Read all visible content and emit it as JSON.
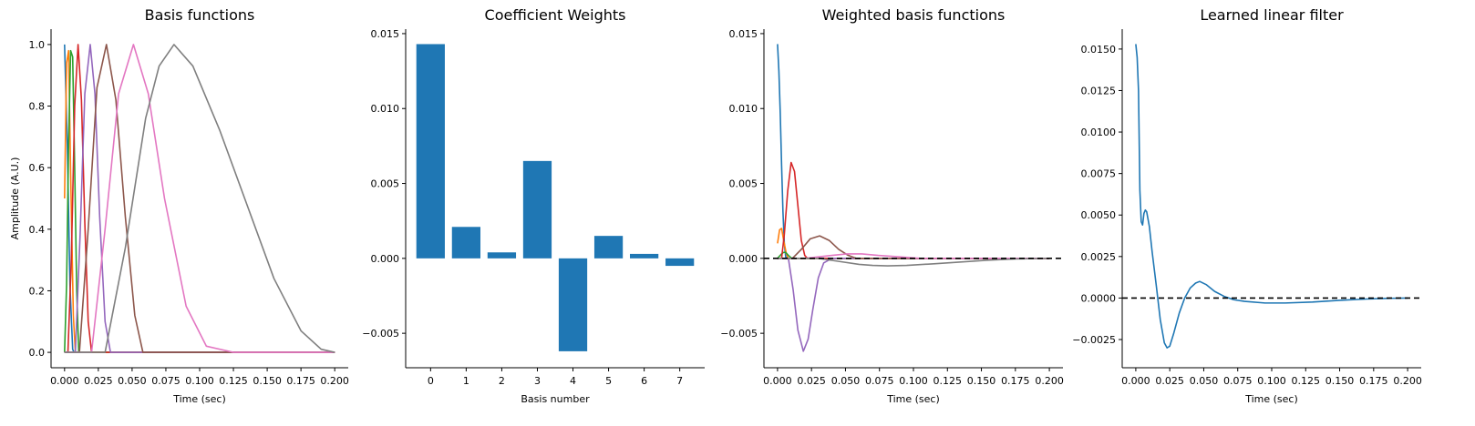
{
  "chart_data": [
    {
      "type": "line",
      "title": "Basis functions",
      "xlabel": "Time (sec)",
      "ylabel": "Amplitude (A.U.)",
      "xlim": [
        -0.01,
        0.21
      ],
      "ylim": [
        -0.05,
        1.05
      ],
      "xticks": [
        0.0,
        0.025,
        0.05,
        0.075,
        0.1,
        0.125,
        0.15,
        0.175,
        0.2
      ],
      "xtick_labels": [
        "0.000",
        "0.025",
        "0.050",
        "0.075",
        "0.100",
        "0.125",
        "0.150",
        "0.175",
        "0.200"
      ],
      "yticks": [
        0.0,
        0.2,
        0.4,
        0.6,
        0.8,
        1.0
      ],
      "ytick_labels": [
        "0.0",
        "0.2",
        "0.4",
        "0.6",
        "0.8",
        "1.0"
      ],
      "zero_line": false,
      "series": [
        {
          "color": "#1f77b4",
          "points": [
            [
              0.0,
              1.0
            ],
            [
              0.002,
              0.68
            ],
            [
              0.004,
              0.22
            ],
            [
              0.006,
              0.01
            ],
            [
              0.007,
              0.0
            ],
            [
              0.2,
              0.0
            ]
          ]
        },
        {
          "color": "#ff7f0e",
          "points": [
            [
              0.0,
              0.5
            ],
            [
              0.0015,
              0.94
            ],
            [
              0.003,
              0.98
            ],
            [
              0.0045,
              0.58
            ],
            [
              0.0065,
              0.12
            ],
            [
              0.008,
              0.0
            ],
            [
              0.2,
              0.0
            ]
          ]
        },
        {
          "color": "#2ca02c",
          "points": [
            [
              0.0,
              0.0
            ],
            [
              0.0015,
              0.22
            ],
            [
              0.003,
              0.68
            ],
            [
              0.0045,
              0.98
            ],
            [
              0.006,
              0.96
            ],
            [
              0.0075,
              0.6
            ],
            [
              0.009,
              0.2
            ],
            [
              0.0105,
              0.0
            ],
            [
              0.2,
              0.0
            ]
          ]
        },
        {
          "color": "#d62728",
          "points": [
            [
              0.0,
              0.0
            ],
            [
              0.0025,
              0.0
            ],
            [
              0.005,
              0.3
            ],
            [
              0.0075,
              0.8
            ],
            [
              0.01,
              1.0
            ],
            [
              0.0125,
              0.82
            ],
            [
              0.015,
              0.42
            ],
            [
              0.0175,
              0.1
            ],
            [
              0.02,
              0.0
            ],
            [
              0.2,
              0.0
            ]
          ]
        },
        {
          "color": "#9467bd",
          "points": [
            [
              0.0,
              0.0
            ],
            [
              0.008,
              0.0
            ],
            [
              0.0115,
              0.38
            ],
            [
              0.015,
              0.84
            ],
            [
              0.019,
              1.0
            ],
            [
              0.0225,
              0.84
            ],
            [
              0.026,
              0.44
            ],
            [
              0.03,
              0.1
            ],
            [
              0.034,
              0.0
            ],
            [
              0.2,
              0.0
            ]
          ]
        },
        {
          "color": "#8c564b",
          "points": [
            [
              0.0,
              0.0
            ],
            [
              0.011,
              0.0
            ],
            [
              0.0175,
              0.4
            ],
            [
              0.024,
              0.86
            ],
            [
              0.031,
              1.0
            ],
            [
              0.038,
              0.82
            ],
            [
              0.045,
              0.44
            ],
            [
              0.052,
              0.12
            ],
            [
              0.058,
              0.0
            ],
            [
              0.2,
              0.0
            ]
          ]
        },
        {
          "color": "#e377c2",
          "points": [
            [
              0.0,
              0.0
            ],
            [
              0.02,
              0.0
            ],
            [
              0.03,
              0.4
            ],
            [
              0.04,
              0.84
            ],
            [
              0.051,
              1.0
            ],
            [
              0.062,
              0.84
            ],
            [
              0.074,
              0.5
            ],
            [
              0.09,
              0.15
            ],
            [
              0.105,
              0.02
            ],
            [
              0.125,
              0.0
            ],
            [
              0.2,
              0.0
            ]
          ]
        },
        {
          "color": "#7f7f7f",
          "points": [
            [
              0.0,
              0.0
            ],
            [
              0.03,
              0.0
            ],
            [
              0.045,
              0.34
            ],
            [
              0.06,
              0.76
            ],
            [
              0.07,
              0.93
            ],
            [
              0.081,
              1.0
            ],
            [
              0.095,
              0.93
            ],
            [
              0.115,
              0.72
            ],
            [
              0.135,
              0.48
            ],
            [
              0.155,
              0.24
            ],
            [
              0.175,
              0.07
            ],
            [
              0.19,
              0.01
            ],
            [
              0.2,
              0.0
            ]
          ]
        }
      ]
    },
    {
      "type": "bar",
      "title": "Coefficient Weights",
      "xlabel": "Basis number",
      "ylabel": "",
      "categories": [
        "0",
        "1",
        "2",
        "3",
        "4",
        "5",
        "6",
        "7"
      ],
      "values": [
        0.0143,
        0.0021,
        0.0004,
        0.0065,
        -0.0062,
        0.0015,
        0.0003,
        -0.0005
      ],
      "color": "#1f77b4",
      "ylim": [
        -0.0073,
        0.0153
      ],
      "yticks": [
        -0.005,
        0.0,
        0.005,
        0.01,
        0.015
      ],
      "ytick_labels": [
        "−0.005",
        "0.000",
        "0.005",
        "0.010",
        "0.015"
      ]
    },
    {
      "type": "line",
      "title": "Weighted basis functions",
      "xlabel": "Time (sec)",
      "ylabel": "",
      "xlim": [
        -0.01,
        0.21
      ],
      "ylim": [
        -0.0073,
        0.0153
      ],
      "xticks": [
        0.0,
        0.025,
        0.05,
        0.075,
        0.1,
        0.125,
        0.15,
        0.175,
        0.2
      ],
      "xtick_labels": [
        "0.000",
        "0.025",
        "0.050",
        "0.075",
        "0.100",
        "0.125",
        "0.150",
        "0.175",
        "0.200"
      ],
      "yticks": [
        -0.005,
        0.0,
        0.005,
        0.01,
        0.015
      ],
      "ytick_labels": [
        "−0.005",
        "0.000",
        "0.005",
        "0.010",
        "0.015"
      ],
      "zero_line": true,
      "series": [
        {
          "color": "#1f77b4",
          "points": [
            [
              0.0,
              0.0143
            ],
            [
              0.001,
              0.0125
            ],
            [
              0.002,
              0.0097
            ],
            [
              0.003,
              0.0062
            ],
            [
              0.004,
              0.0031
            ],
            [
              0.005,
              0.001
            ],
            [
              0.006,
              0.0001
            ],
            [
              0.007,
              0.0
            ],
            [
              0.2,
              0.0
            ]
          ]
        },
        {
          "color": "#ff7f0e",
          "points": [
            [
              0.0,
              0.001
            ],
            [
              0.0015,
              0.0019
            ],
            [
              0.003,
              0.002
            ],
            [
              0.0045,
              0.0012
            ],
            [
              0.0065,
              0.0003
            ],
            [
              0.008,
              0.0
            ],
            [
              0.2,
              0.0
            ]
          ]
        },
        {
          "color": "#2ca02c",
          "points": [
            [
              0.0,
              0.0
            ],
            [
              0.003,
              0.0003
            ],
            [
              0.0045,
              0.0004
            ],
            [
              0.006,
              0.0004
            ],
            [
              0.008,
              0.0002
            ],
            [
              0.0105,
              0.0
            ],
            [
              0.2,
              0.0
            ]
          ]
        },
        {
          "color": "#d62728",
          "points": [
            [
              0.0,
              0.0
            ],
            [
              0.003,
              0.0
            ],
            [
              0.005,
              0.0016
            ],
            [
              0.0075,
              0.0045
            ],
            [
              0.01,
              0.0064
            ],
            [
              0.0125,
              0.0058
            ],
            [
              0.015,
              0.0035
            ],
            [
              0.0175,
              0.0012
            ],
            [
              0.02,
              0.0002
            ],
            [
              0.022,
              0.0
            ],
            [
              0.2,
              0.0
            ]
          ]
        },
        {
          "color": "#9467bd",
          "points": [
            [
              0.0,
              0.0
            ],
            [
              0.008,
              0.0
            ],
            [
              0.0115,
              -0.0021
            ],
            [
              0.015,
              -0.0048
            ],
            [
              0.019,
              -0.0062
            ],
            [
              0.0225,
              -0.0054
            ],
            [
              0.026,
              -0.0034
            ],
            [
              0.03,
              -0.0013
            ],
            [
              0.034,
              -0.0003
            ],
            [
              0.04,
              0.0
            ],
            [
              0.2,
              0.0
            ]
          ]
        },
        {
          "color": "#8c564b",
          "points": [
            [
              0.0,
              0.0
            ],
            [
              0.011,
              0.0
            ],
            [
              0.0175,
              0.0006
            ],
            [
              0.024,
              0.0013
            ],
            [
              0.031,
              0.0015
            ],
            [
              0.038,
              0.0012
            ],
            [
              0.045,
              0.0006
            ],
            [
              0.052,
              0.0002
            ],
            [
              0.058,
              0.0
            ],
            [
              0.2,
              0.0
            ]
          ]
        },
        {
          "color": "#e377c2",
          "points": [
            [
              0.0,
              0.0
            ],
            [
              0.02,
              0.0
            ],
            [
              0.03,
              0.0001
            ],
            [
              0.04,
              0.0002
            ],
            [
              0.051,
              0.0003
            ],
            [
              0.062,
              0.0003
            ],
            [
              0.074,
              0.0002
            ],
            [
              0.09,
              0.0001
            ],
            [
              0.105,
              0.0
            ],
            [
              0.2,
              0.0
            ]
          ]
        },
        {
          "color": "#7f7f7f",
          "points": [
            [
              0.0,
              0.0
            ],
            [
              0.03,
              0.0
            ],
            [
              0.045,
              -0.0002
            ],
            [
              0.06,
              -0.0004
            ],
            [
              0.07,
              -0.00047
            ],
            [
              0.081,
              -0.0005
            ],
            [
              0.095,
              -0.00047
            ],
            [
              0.115,
              -0.00036
            ],
            [
              0.135,
              -0.00024
            ],
            [
              0.155,
              -0.00012
            ],
            [
              0.175,
              -4e-05
            ],
            [
              0.2,
              0.0
            ]
          ]
        }
      ]
    },
    {
      "type": "line",
      "title": "Learned linear filter",
      "xlabel": "Time (sec)",
      "ylabel": "",
      "xlim": [
        -0.01,
        0.21
      ],
      "ylim": [
        -0.0042,
        0.0162
      ],
      "xticks": [
        0.0,
        0.025,
        0.05,
        0.075,
        0.1,
        0.125,
        0.15,
        0.175,
        0.2
      ],
      "xtick_labels": [
        "0.000",
        "0.025",
        "0.050",
        "0.075",
        "0.100",
        "0.125",
        "0.150",
        "0.175",
        "0.200"
      ],
      "yticks": [
        -0.0025,
        0.0,
        0.0025,
        0.005,
        0.0075,
        0.01,
        0.0125,
        0.015
      ],
      "ytick_labels": [
        "−0.0025",
        "0.0000",
        "0.0025",
        "0.0050",
        "0.0075",
        "0.0100",
        "0.0125",
        "0.0150"
      ],
      "zero_line": true,
      "series": [
        {
          "color": "#1f77b4",
          "points": [
            [
              0.0,
              0.0153
            ],
            [
              0.001,
              0.0145
            ],
            [
              0.002,
              0.0125
            ],
            [
              0.003,
              0.0065
            ],
            [
              0.004,
              0.0046
            ],
            [
              0.005,
              0.0044
            ],
            [
              0.006,
              0.0051
            ],
            [
              0.007,
              0.0053
            ],
            [
              0.008,
              0.0052
            ],
            [
              0.01,
              0.0043
            ],
            [
              0.012,
              0.0028
            ],
            [
              0.015,
              0.0008
            ],
            [
              0.018,
              -0.0013
            ],
            [
              0.021,
              -0.0027
            ],
            [
              0.023,
              -0.003
            ],
            [
              0.025,
              -0.0029
            ],
            [
              0.028,
              -0.0021
            ],
            [
              0.032,
              -0.0009
            ],
            [
              0.036,
              0.0
            ],
            [
              0.04,
              0.0006
            ],
            [
              0.044,
              0.0009
            ],
            [
              0.047,
              0.001
            ],
            [
              0.052,
              0.0008
            ],
            [
              0.058,
              0.0004
            ],
            [
              0.065,
              0.0001
            ],
            [
              0.072,
              -0.0001
            ],
            [
              0.08,
              -0.0002
            ],
            [
              0.095,
              -0.0003
            ],
            [
              0.11,
              -0.0003
            ],
            [
              0.13,
              -0.00024
            ],
            [
              0.15,
              -0.00014
            ],
            [
              0.17,
              -6e-05
            ],
            [
              0.185,
              -2e-05
            ],
            [
              0.2,
              0.0
            ]
          ]
        }
      ]
    }
  ]
}
